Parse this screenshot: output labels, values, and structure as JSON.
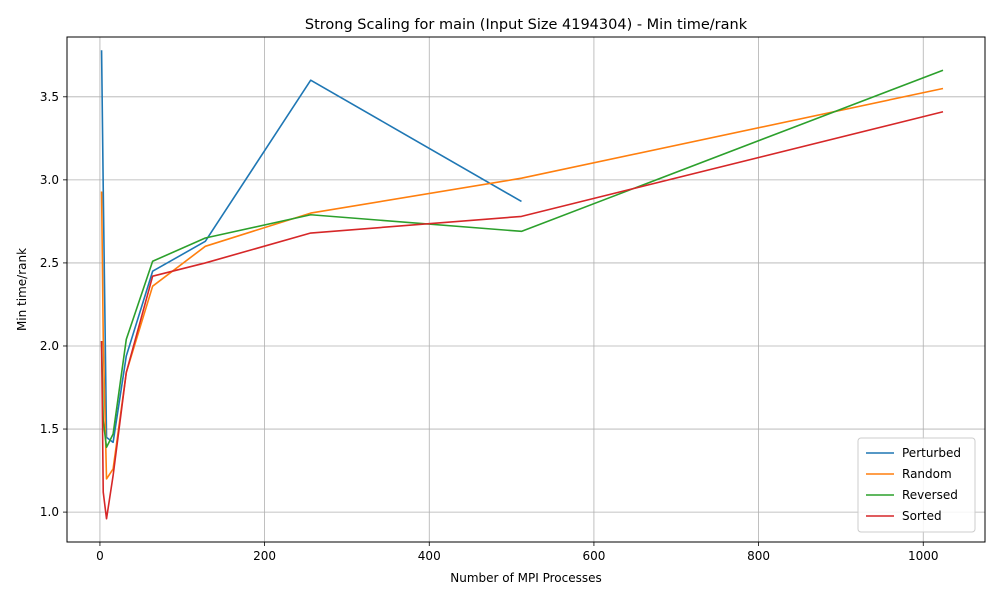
{
  "chart_data": {
    "type": "line",
    "title": "Strong Scaling for main (Input Size 4194304) - Min time/rank",
    "xlabel": "Number of MPI Processes",
    "ylabel": "Min time/rank",
    "xlim": [
      -40,
      1075
    ],
    "ylim": [
      0.82,
      3.86
    ],
    "xticks": [
      0,
      200,
      400,
      600,
      800,
      1000
    ],
    "yticks": [
      1.0,
      1.5,
      2.0,
      2.5,
      3.0,
      3.5
    ],
    "xtick_labels": [
      "0",
      "200",
      "400",
      "600",
      "800",
      "1000"
    ],
    "ytick_labels": [
      "1.0",
      "1.5",
      "2.0",
      "2.5",
      "3.0",
      "3.5"
    ],
    "grid": true,
    "legend_position": "lower-right",
    "series": [
      {
        "name": "Perturbed",
        "color": "#1f77b4",
        "x": [
          2,
          4,
          8,
          16,
          32,
          64,
          128,
          256,
          512
        ],
        "y": [
          3.78,
          2.95,
          1.45,
          1.42,
          1.94,
          2.45,
          2.63,
          3.6,
          2.87
        ]
      },
      {
        "name": "Random",
        "color": "#ff7f0e",
        "x": [
          2,
          4,
          8,
          16,
          32,
          64,
          128,
          256,
          512,
          1024
        ],
        "y": [
          2.93,
          2.05,
          1.2,
          1.26,
          1.84,
          2.36,
          2.6,
          2.8,
          3.01,
          3.55
        ]
      },
      {
        "name": "Reversed",
        "color": "#2ca02c",
        "x": [
          2,
          4,
          8,
          16,
          32,
          64,
          128,
          256,
          512,
          1024
        ],
        "y": [
          2.03,
          1.55,
          1.39,
          1.47,
          2.04,
          2.51,
          2.65,
          2.79,
          2.69,
          3.66
        ]
      },
      {
        "name": "Sorted",
        "color": "#d62728",
        "x": [
          2,
          4,
          8,
          16,
          32,
          64,
          128,
          256,
          512,
          1024
        ],
        "y": [
          2.03,
          1.12,
          0.96,
          1.22,
          1.84,
          2.42,
          2.5,
          2.68,
          2.78,
          3.41
        ]
      }
    ]
  }
}
